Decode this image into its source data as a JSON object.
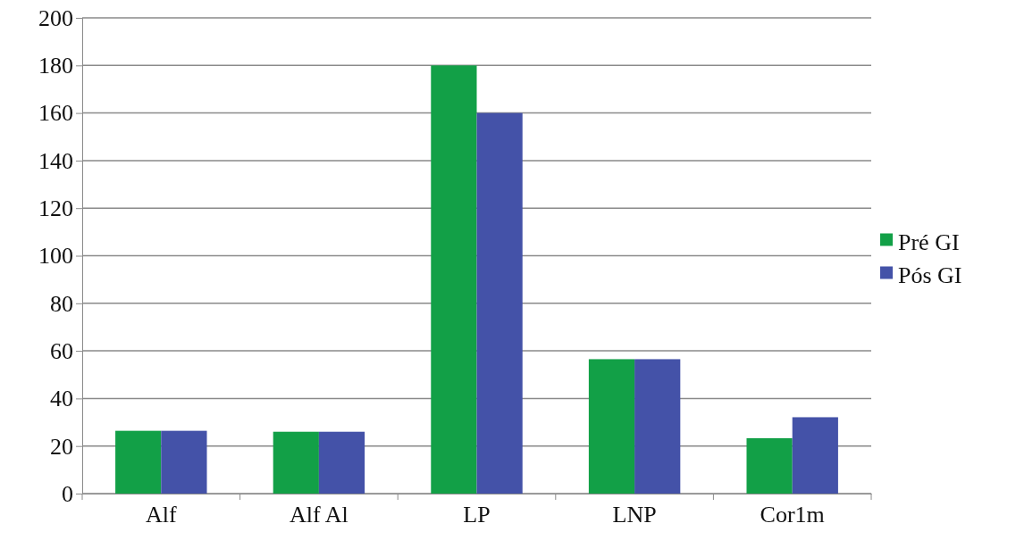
{
  "chart_data": {
    "type": "bar",
    "categories": [
      "Alf",
      "Alf Al",
      "LP",
      "LNP",
      "Cor1m"
    ],
    "series": [
      {
        "name": "Pré GI",
        "color": "#12a047",
        "values": [
          26.4,
          26,
          180,
          56.5,
          23.3
        ]
      },
      {
        "name": "Pós GI",
        "color": "#4452a8",
        "values": [
          26.4,
          26,
          160,
          56.5,
          32.1
        ]
      }
    ],
    "ylim": [
      0,
      200
    ],
    "yticks": [
      0,
      20,
      40,
      60,
      80,
      100,
      120,
      140,
      160,
      180,
      200
    ],
    "grid": "y",
    "legend": "right"
  }
}
